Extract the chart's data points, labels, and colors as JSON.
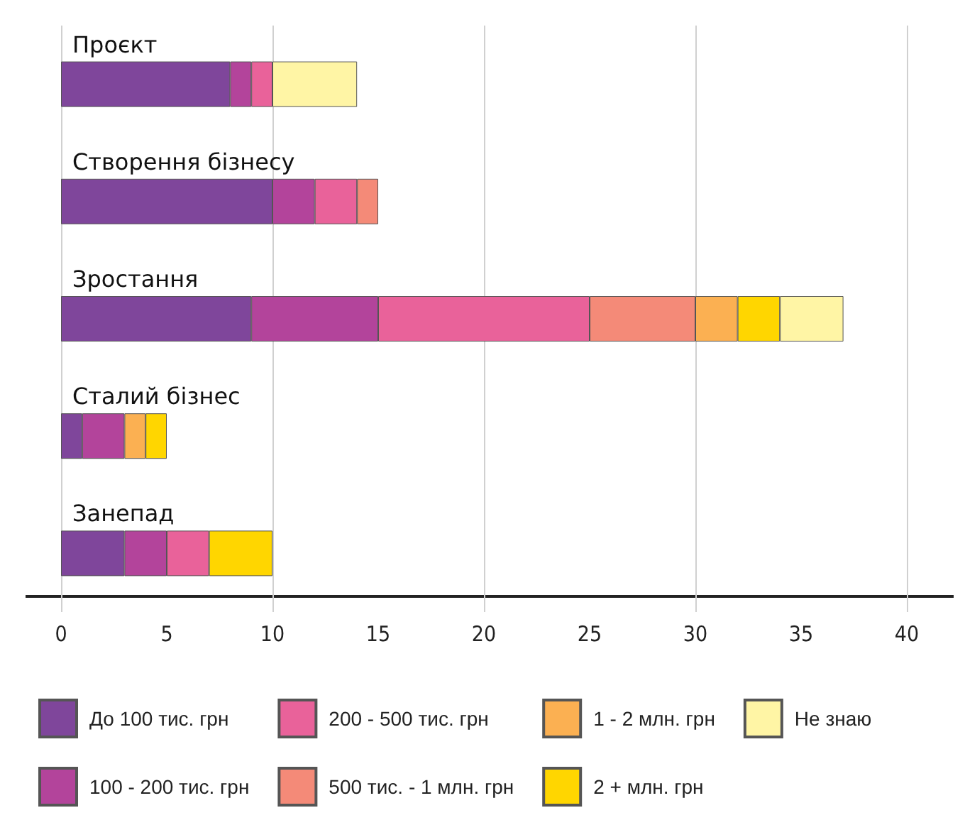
{
  "chart_data": {
    "type": "bar",
    "orientation": "horizontal",
    "stacked": true,
    "categories": [
      "Проєкт",
      "Створення бізнесу",
      "Зростання",
      "Сталий бізнес",
      "Занепад"
    ],
    "series": [
      {
        "name": "До 100 тис. грн",
        "color": "#7f469b",
        "values": [
          8,
          10,
          9,
          1,
          3
        ]
      },
      {
        "name": "100 - 200 тис. грн",
        "color": "#b3449b",
        "values": [
          1,
          2,
          6,
          2,
          2
        ]
      },
      {
        "name": "200 - 500 тис. грн",
        "color": "#e9629a",
        "values": [
          1,
          2,
          10,
          null,
          2
        ]
      },
      {
        "name": "500 тис. - 1 млн. грн",
        "color": "#f48a78",
        "values": [
          null,
          1,
          5,
          null,
          null
        ]
      },
      {
        "name": "1 - 2 млн. грн",
        "color": "#fbb052",
        "values": [
          null,
          null,
          2,
          1,
          null
        ]
      },
      {
        "name": "2 + млн. грн",
        "color": "#ffd600",
        "values": [
          null,
          null,
          2,
          1,
          3
        ]
      },
      {
        "name": "Не знаю",
        "color": "#fff5a5",
        "values": [
          4,
          null,
          3,
          null,
          null
        ]
      }
    ],
    "xlim": [
      0,
      40
    ],
    "xticks": [
      0,
      5,
      10,
      15,
      20,
      25,
      30,
      35,
      40
    ],
    "grid": "x",
    "legend": "bottom"
  }
}
